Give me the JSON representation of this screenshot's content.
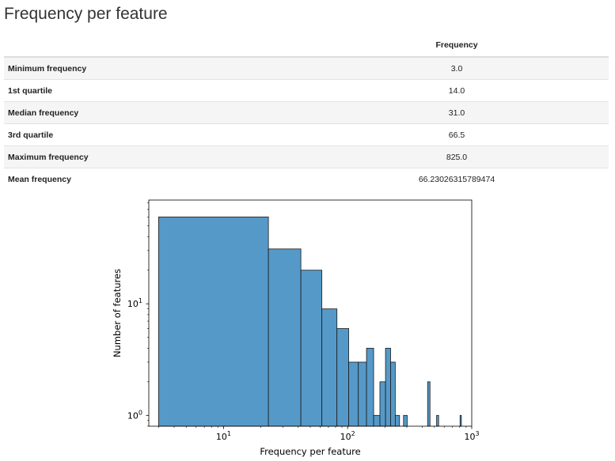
{
  "page": {
    "title": "Frequency per feature"
  },
  "table": {
    "column_header": "Frequency",
    "rows": [
      {
        "label": "Minimum frequency",
        "value": "3.0"
      },
      {
        "label": "1st quartile",
        "value": "14.0"
      },
      {
        "label": "Median frequency",
        "value": "31.0"
      },
      {
        "label": "3rd quartile",
        "value": "66.5"
      },
      {
        "label": "Maximum frequency",
        "value": "825.0"
      },
      {
        "label": "Mean frequency",
        "value": "66.23026315789474"
      }
    ]
  },
  "chart_data": {
    "type": "bar",
    "xlabel": "Frequency per feature",
    "ylabel": "Number of features",
    "x_scale": "log",
    "y_scale": "log",
    "xlim": [
      2.5,
      1000
    ],
    "ylim": [
      0.8,
      85
    ],
    "x_ticks": [
      {
        "value": 10,
        "base": "10",
        "exp": "1"
      },
      {
        "value": 100,
        "base": "10",
        "exp": "2"
      },
      {
        "value": 1000,
        "base": "10",
        "exp": "3"
      }
    ],
    "y_ticks": [
      {
        "value": 1,
        "base": "10",
        "exp": "0"
      },
      {
        "value": 10,
        "base": "10",
        "exp": "1"
      }
    ],
    "bar_color": "#5599c8",
    "edge_color": "#1a1a1a",
    "bins": [
      {
        "x0": 3.0,
        "x1": 23.0,
        "count": 60
      },
      {
        "x0": 23.0,
        "x1": 42.0,
        "count": 31
      },
      {
        "x0": 42.0,
        "x1": 62.0,
        "count": 20
      },
      {
        "x0": 62.0,
        "x1": 82.0,
        "count": 9
      },
      {
        "x0": 82.0,
        "x1": 102.0,
        "count": 6
      },
      {
        "x0": 102.0,
        "x1": 122.0,
        "count": 3
      },
      {
        "x0": 122.0,
        "x1": 142.0,
        "count": 3
      },
      {
        "x0": 142.0,
        "x1": 162.0,
        "count": 4
      },
      {
        "x0": 162.0,
        "x1": 182.0,
        "count": 1
      },
      {
        "x0": 182.0,
        "x1": 202.0,
        "count": 2
      },
      {
        "x0": 202.0,
        "x1": 222.0,
        "count": 4
      },
      {
        "x0": 222.0,
        "x1": 242.0,
        "count": 3
      },
      {
        "x0": 242.0,
        "x1": 262.0,
        "count": 1
      },
      {
        "x0": 282.0,
        "x1": 302.0,
        "count": 1
      },
      {
        "x0": 441.0,
        "x1": 461.0,
        "count": 2
      },
      {
        "x0": 521.0,
        "x1": 541.0,
        "count": 1
      },
      {
        "x0": 805.0,
        "x1": 825.0,
        "count": 1
      }
    ]
  }
}
